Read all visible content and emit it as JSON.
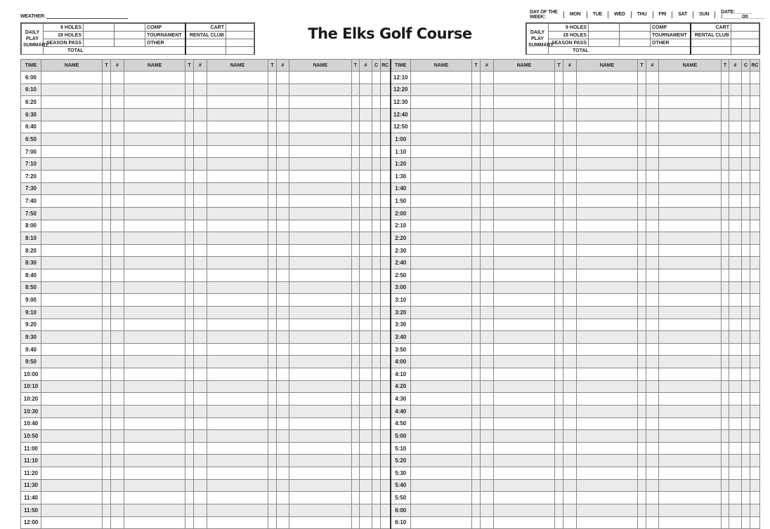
{
  "weather_label": "WEATHER:",
  "day_of_week": {
    "label": "DAY OF THE WEEK:",
    "days": [
      "MON",
      "TUE",
      "WED",
      "THU",
      "FRI",
      "SAT",
      "SUN"
    ]
  },
  "date": {
    "label": "DATE: ______ /_______ /20______"
  },
  "title": "The Elks Golf Course",
  "summary": {
    "label": [
      "DAILY",
      "PLAY",
      "SUMMARY"
    ],
    "rows": [
      "9 HOLES",
      "18 HOLES",
      "SEASON PASS",
      "TOTAL"
    ],
    "mid": [
      "COMP",
      "TOURNAMENT",
      "OTHER"
    ],
    "right": [
      "CART",
      "RENTAL CLUB"
    ]
  },
  "headers": [
    "TIME",
    "NAME",
    "T",
    "#",
    "NAME",
    "T",
    "#",
    "NAME",
    "T",
    "#",
    "NAME",
    "T",
    "#",
    "C",
    "RC"
  ],
  "times_left": [
    "6:00",
    "6:10",
    "6:20",
    "6:30",
    "6:40",
    "6:50",
    "7:00",
    "7:10",
    "7:20",
    "7:30",
    "7:40",
    "7:50",
    "8:00",
    "8:10",
    "8:20",
    "8:30",
    "8:40",
    "8:50",
    "9:00",
    "9:10",
    "9:20",
    "9:30",
    "9:40",
    "9:50",
    "10:00",
    "10:10",
    "10:20",
    "10:30",
    "10:40",
    "10:50",
    "11:00",
    "11:10",
    "11:20",
    "11:30",
    "11:40",
    "11:50",
    "12:00"
  ],
  "times_right": [
    "12:10",
    "12:20",
    "12:30",
    "12:40",
    "12:50",
    "1:00",
    "1:10",
    "1:20",
    "1:30",
    "1:40",
    "1:50",
    "2:00",
    "2:10",
    "2:20",
    "2:30",
    "2:40",
    "2:50",
    "3:00",
    "3:10",
    "3:20",
    "3:30",
    "3:40",
    "3:50",
    "4:00",
    "4:10",
    "4:20",
    "4:30",
    "4:40",
    "4:50",
    "5:00",
    "5:10",
    "5:20",
    "5:30",
    "5:40",
    "5:50",
    "6:00",
    "6:10"
  ]
}
